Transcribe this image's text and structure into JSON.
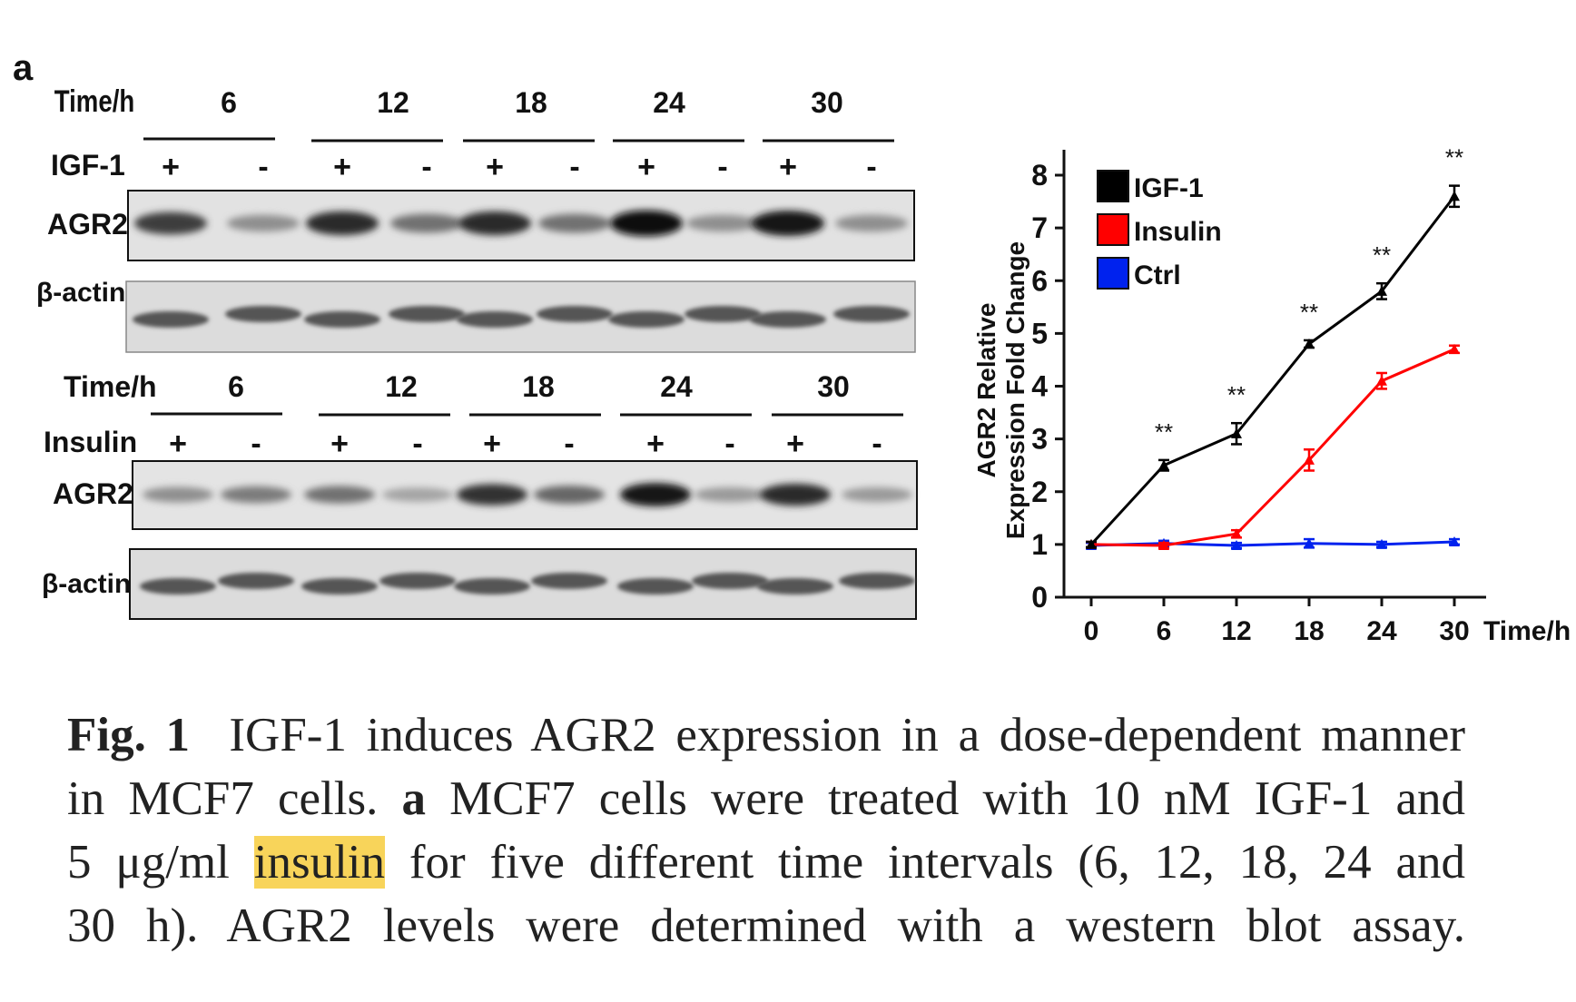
{
  "panel_label": "a",
  "blot_top": {
    "time_label": "Time/h",
    "times": [
      "6",
      "12",
      "18",
      "24",
      "30"
    ],
    "treatment": "IGF-1",
    "signs": [
      "+",
      "-",
      "+",
      "-",
      "+",
      "-",
      "+",
      "-",
      "+",
      "-"
    ],
    "agr2_label": "AGR2",
    "actin_label": "β-actin",
    "agr2_band_intensity": [
      0.75,
      0.35,
      0.85,
      0.5,
      0.85,
      0.5,
      1.0,
      0.35,
      0.95,
      0.35
    ]
  },
  "blot_bottom": {
    "time_label": "Time/h",
    "times": [
      "6",
      "12",
      "18",
      "24",
      "30"
    ],
    "treatment": "Insulin",
    "signs": [
      "+",
      "-",
      "+",
      "-",
      "+",
      "-",
      "+",
      "-",
      "+",
      "-"
    ],
    "agr2_label": "AGR2",
    "actin_label": "β-actin",
    "agr2_band_intensity": [
      0.35,
      0.45,
      0.5,
      0.25,
      0.8,
      0.55,
      0.95,
      0.3,
      0.85,
      0.3
    ]
  },
  "chart_data": {
    "type": "line",
    "ylabel": "AGR2 Relative Expression Fold Change",
    "xlabel": "Time/h",
    "x": [
      0,
      6,
      12,
      18,
      24,
      30
    ],
    "ylim": [
      0,
      8
    ],
    "yticks": [
      "0",
      "1",
      "2",
      "3",
      "4",
      "5",
      "6",
      "7",
      "8"
    ],
    "xticks": [
      "0",
      "6",
      "12",
      "18",
      "24",
      "30"
    ],
    "legend_position": "top-left",
    "series": [
      {
        "name": "IGF-1",
        "color": "#000000",
        "values": [
          1.0,
          2.5,
          3.1,
          4.8,
          5.8,
          7.6
        ],
        "err": [
          0.05,
          0.1,
          0.2,
          0.07,
          0.15,
          0.2
        ]
      },
      {
        "name": "Insulin",
        "color": "#ff0000",
        "values": [
          1.0,
          0.98,
          1.2,
          2.6,
          4.1,
          4.7
        ],
        "err": [
          0.05,
          0.05,
          0.07,
          0.2,
          0.15,
          0.07
        ]
      },
      {
        "name": "Ctrl",
        "color": "#0022ee",
        "values": [
          0.98,
          1.02,
          0.98,
          1.02,
          1.0,
          1.05
        ],
        "err": [
          0.05,
          0.05,
          0.05,
          0.08,
          0.05,
          0.05
        ]
      }
    ],
    "annotations": [
      "**",
      "**",
      "**",
      "**",
      "**"
    ]
  },
  "caption": {
    "fig_label": "Fig. 1",
    "line1_rest": "IGF-1 induces AGR2 expression in a dose-dependent manner",
    "line2_pre": "in MCF7 cells.",
    "line2_bold": "a",
    "line2_post": "MCF7 cells were treated with 10 nM IGF-1 and",
    "line3_pre": "5 μg/ml",
    "line3_highlight": "insulin",
    "line3_post": "for five different time intervals (6, 12, 18, 24 and",
    "line4": "30 h). AGR2 levels were determined with a western blot assay."
  }
}
